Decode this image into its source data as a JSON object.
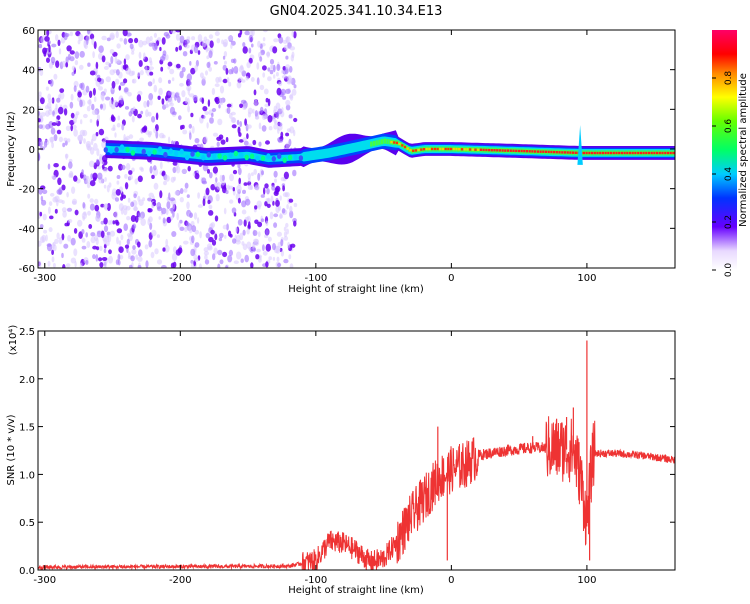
{
  "title": "GN04.2025.341.10.34.E13",
  "chart_data": [
    {
      "type": "heatmap",
      "xlabel": "Height of straight line (km)",
      "ylabel": "Frequency (Hz)",
      "xlim": [
        -305,
        165
      ],
      "ylim": [
        -60,
        60
      ],
      "xticks": [
        -300,
        -200,
        -100,
        0,
        100
      ],
      "yticks": [
        -60,
        -40,
        -20,
        0,
        20,
        40,
        60
      ],
      "colorbar": {
        "label": "Normalized spectral amplitude",
        "range": [
          0,
          1
        ],
        "ticks": [
          "0.0",
          "0.2",
          "0.4",
          "0.6",
          "0.8"
        ]
      },
      "band_center": [
        [
          -255,
          0
        ],
        [
          -220,
          -1
        ],
        [
          -180,
          -4
        ],
        [
          -150,
          -3
        ],
        [
          -135,
          -5
        ],
        [
          -110,
          -4
        ],
        [
          -90,
          -2
        ],
        [
          -70,
          1
        ],
        [
          -50,
          4
        ],
        [
          -40,
          3
        ],
        [
          -30,
          -1
        ],
        [
          -20,
          0
        ],
        [
          -10,
          0
        ],
        [
          0,
          0
        ],
        [
          50,
          -1
        ],
        [
          95,
          -2
        ],
        [
          165,
          -2
        ]
      ],
      "noise_region": [
        -305,
        -115
      ]
    },
    {
      "type": "line",
      "xlabel": "Height of straight line (km)",
      "ylabel": "SNR (10 * v/v)",
      "y_multiplier": "(x10⁴)",
      "xlim": [
        -305,
        165
      ],
      "ylim": [
        0,
        2.5
      ],
      "xticks": [
        -300,
        -200,
        -100,
        0,
        100
      ],
      "yticks": [
        "0.0",
        "0.5",
        "1.0",
        "1.5",
        "2.0",
        "2.5"
      ],
      "color": "#ee3333",
      "envelope": [
        [
          -305,
          0.03
        ],
        [
          -120,
          0.04
        ],
        [
          -100,
          0.1
        ],
        [
          -90,
          0.3
        ],
        [
          -80,
          0.28
        ],
        [
          -70,
          0.2
        ],
        [
          -60,
          0.08
        ],
        [
          -50,
          0.12
        ],
        [
          -40,
          0.3
        ],
        [
          -30,
          0.55
        ],
        [
          -20,
          0.75
        ],
        [
          -10,
          0.95
        ],
        [
          0,
          1.05
        ],
        [
          10,
          1.1
        ],
        [
          20,
          1.2
        ],
        [
          40,
          1.25
        ],
        [
          60,
          1.28
        ],
        [
          80,
          1.27
        ],
        [
          90,
          1.25
        ],
        [
          95,
          1.0
        ],
        [
          100,
          0.5
        ],
        [
          103,
          1.0
        ],
        [
          105,
          1.22
        ],
        [
          120,
          1.22
        ],
        [
          140,
          1.2
        ],
        [
          165,
          1.15
        ]
      ],
      "spikes": [
        [
          -10,
          1.5
        ],
        [
          -3,
          0.1
        ],
        [
          60,
          1.4
        ],
        [
          85,
          1.6
        ],
        [
          90,
          1.7
        ],
        [
          100,
          2.4
        ],
        [
          102,
          0.1
        ]
      ]
    }
  ]
}
